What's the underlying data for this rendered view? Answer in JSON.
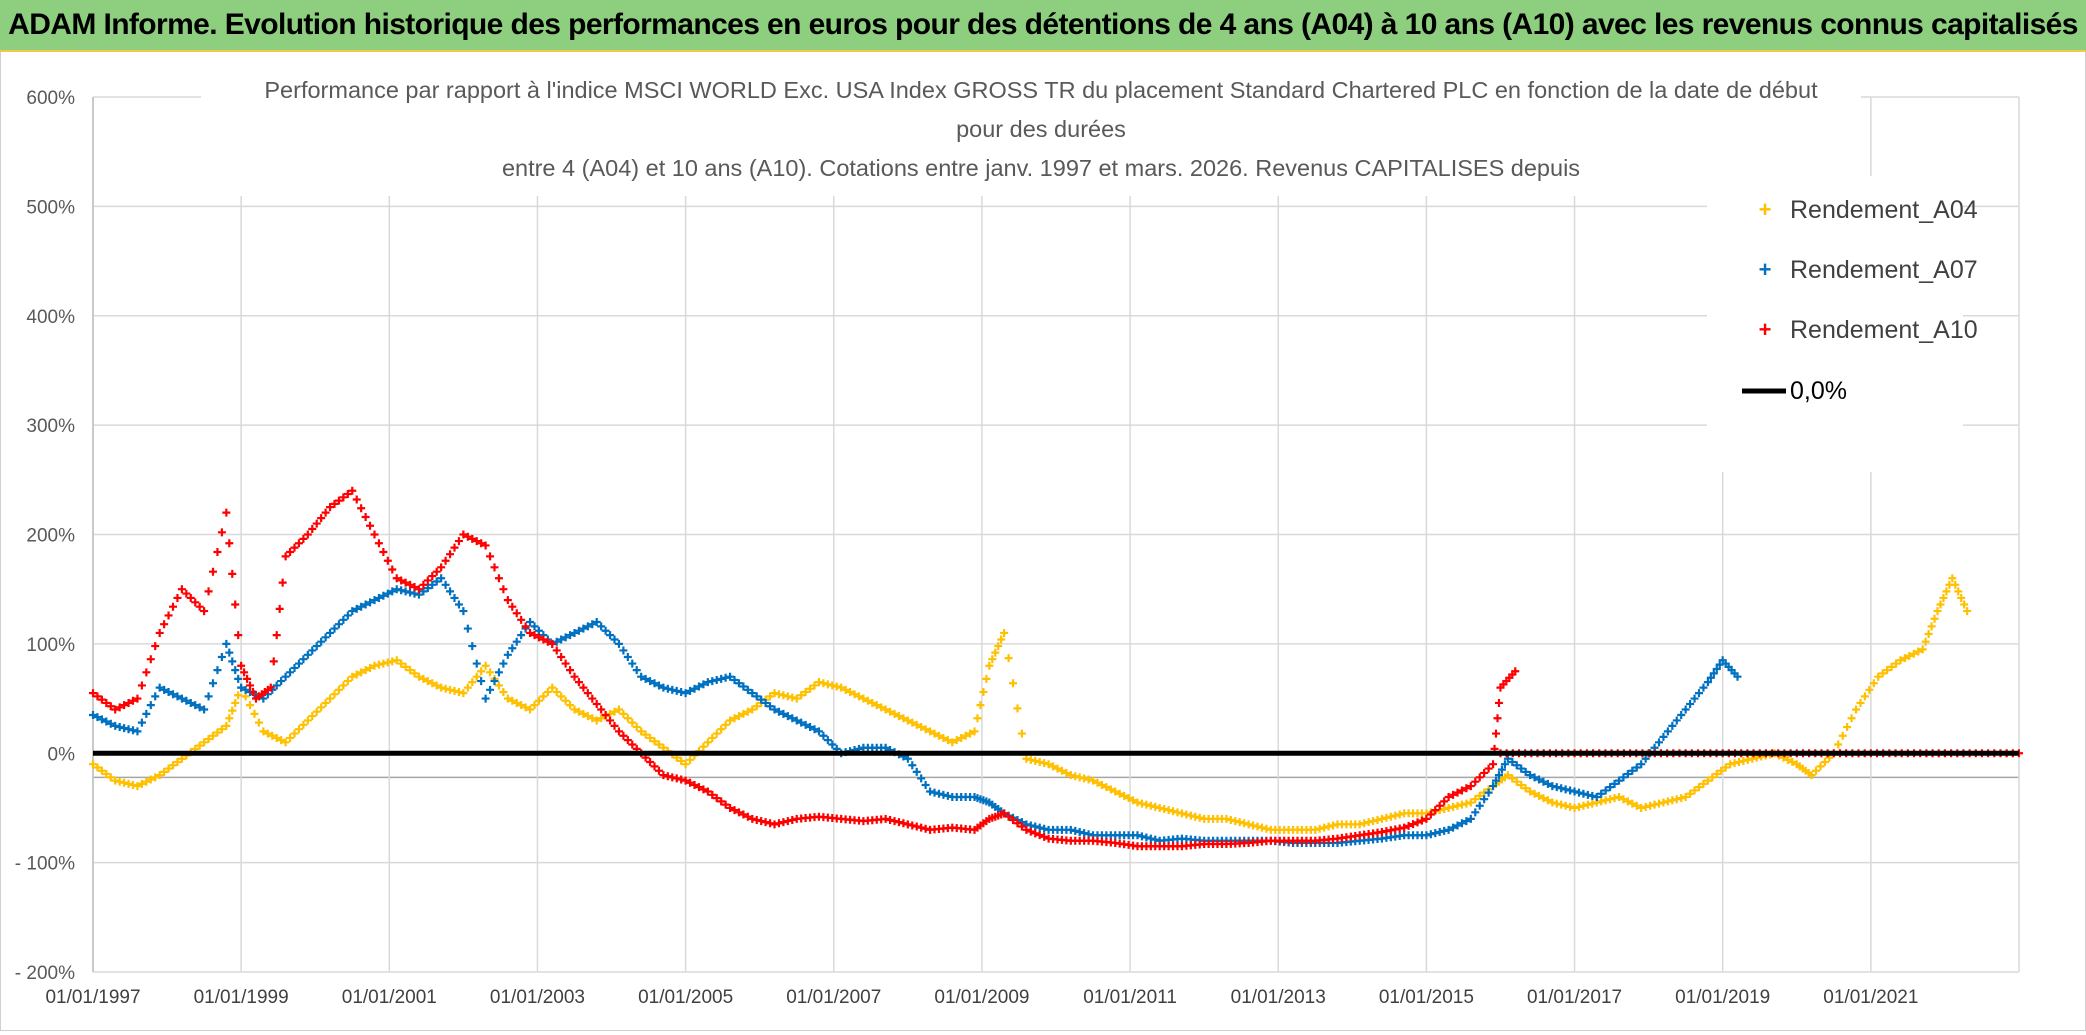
{
  "banner": {
    "title": "ADAM Informe. Evolution historique des performances en euros pour des détentions de 4 ans (A04) à 10 ans (A10) avec les revenus connus capitalisés"
  },
  "colors": {
    "banner_bg": "#8dcf7e",
    "banner_border": "#f2c84b",
    "series_A04": "#ffc000",
    "series_A07": "#0070c0",
    "series_A10": "#ff0000",
    "zero_line": "#000000",
    "grid": "#d9d9d9"
  },
  "chart_data": {
    "type": "scatter",
    "title_lines": [
      "Performance par rapport à l'indice MSCI WORLD Exc. USA Index GROSS TR  du placement Standard Chartered PLC en fonction de la date de début",
      "pour des durées",
      "entre 4 (A04) et 10 ans (A10). Cotations entre janv. 1997 et mars. 2026. Revenus CAPITALISES depuis"
    ],
    "xlabel": "",
    "ylabel": "",
    "ylim": [
      -200,
      600
    ],
    "xlim": [
      1997.0,
      2023.0
    ],
    "y_ticks": [
      600,
      500,
      400,
      300,
      200,
      100,
      0,
      -100,
      -200
    ],
    "y_tick_labels": [
      "600%",
      "500%",
      "400%",
      "300%",
      "200%",
      "100%",
      "0%",
      "- 100%",
      "- 200%"
    ],
    "x_ticks": [
      1997,
      1999,
      2001,
      2003,
      2005,
      2007,
      2009,
      2011,
      2013,
      2015,
      2017,
      2019,
      2021
    ],
    "x_tick_labels": [
      "01/01/1997",
      "01/01/1999",
      "01/01/2001",
      "01/01/2003",
      "01/01/2005",
      "01/01/2007",
      "01/01/2009",
      "01/01/2011",
      "01/01/2013",
      "01/01/2015",
      "01/01/2017",
      "01/01/2019",
      "01/01/2021"
    ],
    "grid": true,
    "legend_position": "top-right",
    "reference_line": {
      "name": "0,0%",
      "y": 0
    },
    "series": [
      {
        "name": "Rendement_A04",
        "marker": "+",
        "x": [
          1997.0,
          1997.3,
          1997.6,
          1997.9,
          1998.2,
          1998.5,
          1998.8,
          1999.0,
          1999.3,
          1999.6,
          1999.9,
          2000.2,
          2000.5,
          2000.8,
          2001.1,
          2001.4,
          2001.7,
          2002.0,
          2002.3,
          2002.6,
          2002.9,
          2003.2,
          2003.5,
          2003.8,
          2004.1,
          2004.4,
          2004.7,
          2005.0,
          2005.3,
          2005.6,
          2005.9,
          2006.2,
          2006.5,
          2006.8,
          2007.1,
          2007.4,
          2007.7,
          2008.0,
          2008.3,
          2008.6,
          2008.9,
          2009.1,
          2009.3,
          2009.6,
          2009.9,
          2010.2,
          2010.5,
          2010.8,
          2011.1,
          2011.4,
          2011.7,
          2012.0,
          2012.3,
          2012.6,
          2012.9,
          2013.2,
          2013.5,
          2013.8,
          2014.1,
          2014.4,
          2014.7,
          2015.0,
          2015.3,
          2015.6,
          2015.9,
          2016.1,
          2016.4,
          2016.7,
          2017.0,
          2017.3,
          2017.6,
          2017.9,
          2018.2,
          2018.5,
          2018.8,
          2019.1,
          2019.4,
          2019.7,
          2020.0,
          2020.2,
          2020.5,
          2020.8,
          2021.1,
          2021.4,
          2021.7,
          2021.9,
          2022.1,
          2022.3
        ],
        "y": [
          -10,
          -25,
          -30,
          -20,
          -5,
          10,
          25,
          60,
          20,
          10,
          30,
          50,
          70,
          80,
          85,
          70,
          60,
          55,
          80,
          50,
          40,
          60,
          40,
          30,
          40,
          20,
          5,
          -10,
          10,
          30,
          40,
          55,
          50,
          65,
          60,
          50,
          40,
          30,
          20,
          10,
          20,
          80,
          110,
          -5,
          -10,
          -20,
          -25,
          -35,
          -45,
          -50,
          -55,
          -60,
          -60,
          -65,
          -70,
          -70,
          -70,
          -65,
          -65,
          -60,
          -55,
          -55,
          -50,
          -45,
          -30,
          -20,
          -35,
          -45,
          -50,
          -45,
          -40,
          -50,
          -45,
          -40,
          -25,
          -10,
          -5,
          0,
          -10,
          -20,
          0,
          40,
          70,
          85,
          95,
          130,
          160,
          130
        ]
      },
      {
        "name": "Rendement_A07",
        "marker": "+",
        "x": [
          1997.0,
          1997.3,
          1997.6,
          1997.9,
          1998.2,
          1998.5,
          1998.8,
          1999.0,
          1999.3,
          1999.6,
          1999.9,
          2000.2,
          2000.5,
          2000.8,
          2001.1,
          2001.4,
          2001.7,
          2002.0,
          2002.3,
          2002.6,
          2002.9,
          2003.2,
          2003.5,
          2003.8,
          2004.1,
          2004.4,
          2004.7,
          2005.0,
          2005.3,
          2005.6,
          2005.9,
          2006.2,
          2006.5,
          2006.8,
          2007.1,
          2007.4,
          2007.7,
          2008.0,
          2008.3,
          2008.6,
          2008.9,
          2009.1,
          2009.3,
          2009.6,
          2009.9,
          2010.2,
          2010.5,
          2010.8,
          2011.1,
          2011.4,
          2011.7,
          2012.0,
          2012.3,
          2012.6,
          2012.9,
          2013.2,
          2013.5,
          2013.8,
          2014.1,
          2014.4,
          2014.7,
          2015.0,
          2015.3,
          2015.6,
          2015.9,
          2016.1,
          2016.4,
          2016.7,
          2017.0,
          2017.3,
          2017.6,
          2017.9,
          2018.2,
          2018.5,
          2018.8,
          2019.0,
          2019.2
        ],
        "y": [
          35,
          25,
          20,
          60,
          50,
          40,
          100,
          60,
          50,
          70,
          90,
          110,
          130,
          140,
          150,
          145,
          160,
          130,
          50,
          90,
          120,
          100,
          110,
          120,
          100,
          70,
          60,
          55,
          65,
          70,
          55,
          40,
          30,
          20,
          0,
          5,
          5,
          -5,
          -35,
          -40,
          -40,
          -45,
          -55,
          -65,
          -70,
          -70,
          -75,
          -75,
          -75,
          -80,
          -78,
          -80,
          -80,
          -80,
          -80,
          -82,
          -82,
          -82,
          -80,
          -78,
          -75,
          -75,
          -70,
          -60,
          -30,
          -5,
          -20,
          -30,
          -35,
          -40,
          -25,
          -10,
          15,
          40,
          65,
          85,
          70
        ]
      },
      {
        "name": "Rendement_A10",
        "marker": "+",
        "x": [
          1997.0,
          1997.3,
          1997.6,
          1997.9,
          1998.2,
          1998.5,
          1998.8,
          1999.0,
          1999.2,
          1999.4,
          1999.6,
          1999.9,
          2000.2,
          2000.5,
          2000.8,
          2001.1,
          2001.4,
          2001.7,
          2002.0,
          2002.3,
          2002.6,
          2002.9,
          2003.2,
          2003.5,
          2003.8,
          2004.1,
          2004.4,
          2004.7,
          2005.0,
          2005.3,
          2005.6,
          2005.9,
          2006.2,
          2006.5,
          2006.8,
          2007.1,
          2007.4,
          2007.7,
          2008.0,
          2008.3,
          2008.6,
          2008.9,
          2009.1,
          2009.3,
          2009.6,
          2009.9,
          2010.2,
          2010.5,
          2010.8,
          2011.1,
          2011.4,
          2011.7,
          2012.0,
          2012.3,
          2012.6,
          2012.9,
          2013.2,
          2013.5,
          2013.8,
          2014.1,
          2014.4,
          2014.7,
          2015.0,
          2015.3,
          2015.6,
          2015.9,
          2016.0,
          2016.2
        ],
        "y": [
          55,
          40,
          50,
          110,
          150,
          130,
          220,
          80,
          50,
          60,
          180,
          200,
          225,
          240,
          200,
          160,
          150,
          170,
          200,
          190,
          140,
          110,
          100,
          70,
          45,
          20,
          0,
          -20,
          -25,
          -35,
          -50,
          -60,
          -65,
          -60,
          -58,
          -60,
          -62,
          -60,
          -65,
          -70,
          -68,
          -70,
          -60,
          -55,
          -70,
          -78,
          -80,
          -80,
          -82,
          -85,
          -85,
          -85,
          -83,
          -83,
          -82,
          -80,
          -80,
          -80,
          -78,
          -75,
          -72,
          -68,
          -60,
          -40,
          -30,
          -10,
          60,
          75
        ]
      },
      {
        "name": "Rendement_A10",
        "marker": "+",
        "x": [
          2016.0,
          2016.5,
          2017.0,
          2017.5,
          2018.0,
          2018.5,
          2019.0,
          2019.5,
          2020.0,
          2020.5,
          2021.0,
          2021.5,
          2022.0,
          2022.5,
          2023.0
        ],
        "y": [
          0,
          0,
          0,
          0,
          0,
          0,
          0,
          0,
          0,
          0,
          0,
          0,
          0,
          0,
          0
        ]
      }
    ]
  }
}
